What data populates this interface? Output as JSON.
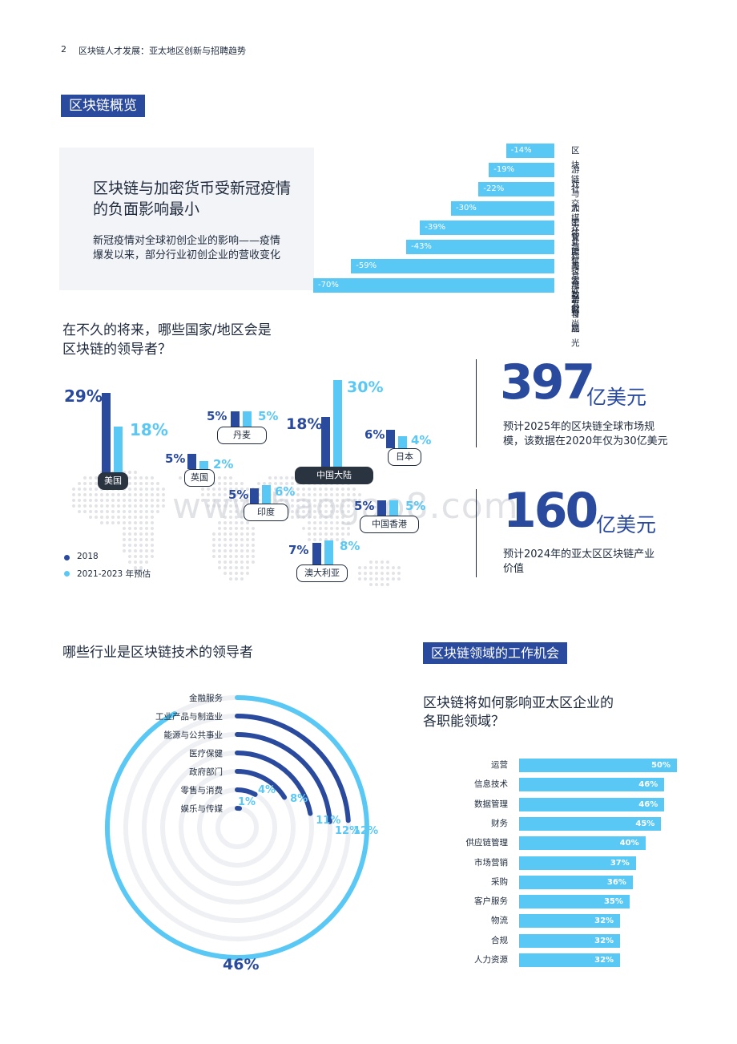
{
  "header": {
    "page_number": "2",
    "doc_title": "区块链人才发展：亚太地区创新与招聘趋势"
  },
  "overview": {
    "section_title": "区块链概览",
    "heading_line1": "区块链与加密货币受新冠疫情",
    "heading_line2": "的负面影响最小",
    "desc_line1": "新冠疫情对全球初创企业的影响——疫情",
    "desc_line2": "爆发以来，部分行业初创企业的营收变化"
  },
  "revenue_change": {
    "chart_data": {
      "type": "bar",
      "orientation": "horizontal",
      "categories": [
        "区块链与加密货币",
        "游戏",
        "社交媒体与信息收发",
        "人工智能与大数据",
        "农业科技与新食品",
        "汽车",
        "美容与时尚",
        "旅游与观光"
      ],
      "values": [
        -14,
        -19,
        -22,
        -30,
        -39,
        -43,
        -59,
        -70
      ],
      "labels": [
        "-14%",
        "-19%",
        "-22%",
        "-30%",
        "-39%",
        "-43%",
        "-59%",
        "-70%"
      ],
      "color": "#5ac8f5"
    }
  },
  "leaders": {
    "question_line1": "在不久的将来，哪些国家/地区会是",
    "question_line2": "区块链的领导者？",
    "legend": [
      {
        "label": "2018",
        "color": "#2a4a9e"
      },
      {
        "label": "2021-2023 年预估",
        "color": "#5ac8f5"
      }
    ],
    "chart_data": {
      "type": "bar",
      "categories": [
        "美国",
        "丹麦",
        "英国",
        "中国大陆",
        "日本",
        "印度",
        "中国香港",
        "澳大利亚"
      ],
      "series": [
        {
          "name": "2018",
          "values": [
            29,
            5,
            5,
            18,
            6,
            5,
            5,
            7
          ],
          "labels": [
            "29%",
            "5%",
            "5%",
            "18%",
            "6%",
            "5%",
            "5%",
            "7%"
          ]
        },
        {
          "name": "2021-2023 年预估",
          "values": [
            18,
            5,
            2,
            30,
            4,
            6,
            5,
            8
          ],
          "labels": [
            "18%",
            "5%",
            "2%",
            "30%",
            "4%",
            "6%",
            "5%",
            "8%"
          ]
        }
      ]
    }
  },
  "stats": [
    {
      "number": "397",
      "unit": "亿美元",
      "desc_line1": "预计2025年的区块链全球市场规",
      "desc_line2": "模，该数据在2020年仅为30亿美元"
    },
    {
      "number": "160",
      "unit": "亿美元",
      "desc_line1": "预计2024年的亚太区区块链产业",
      "desc_line2": "价值"
    }
  ],
  "industries": {
    "title": "哪些行业是区块链技术的领导者",
    "chart_data": {
      "type": "radial-bar",
      "categories": [
        "金融服务",
        "工业产品与制造业",
        "能源与公共事业",
        "医疗保健",
        "政府部门",
        "零售与消费",
        "娱乐与传媒"
      ],
      "values": [
        46,
        12,
        12,
        11,
        8,
        4,
        1
      ],
      "labels": [
        "46%",
        "12%",
        "12%",
        "11%",
        "8%",
        "4%",
        "1%"
      ]
    }
  },
  "jobs": {
    "section_title": "区块链领域的工作机会",
    "question_line1": "区块链将如何影响亚太区企业的",
    "question_line2": "各职能领域？",
    "chart_data": {
      "type": "bar",
      "orientation": "horizontal",
      "categories": [
        "运营",
        "信息技术",
        "数据管理",
        "财务",
        "供应链管理",
        "市场营销",
        "采购",
        "客户服务",
        "物流",
        "合规",
        "人力资源"
      ],
      "values": [
        50,
        46,
        46,
        45,
        40,
        37,
        36,
        35,
        32,
        32,
        32
      ],
      "labels": [
        "50%",
        "46%",
        "46%",
        "45%",
        "40%",
        "37%",
        "36%",
        "35%",
        "32%",
        "32%",
        "32%"
      ],
      "color": "#5ac8f5"
    }
  },
  "watermark": "www.baogao8.com"
}
